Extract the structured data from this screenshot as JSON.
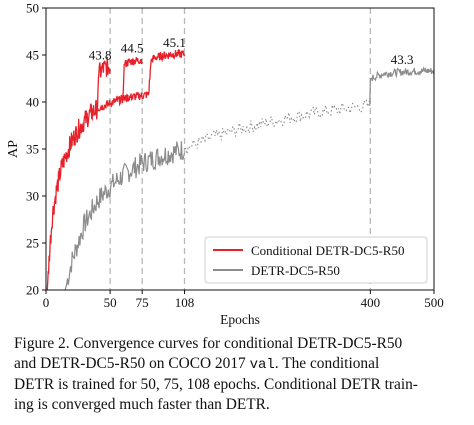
{
  "chart_data": {
    "type": "line",
    "title": "",
    "xlabel": "Epochs",
    "ylabel": "AP",
    "xlim": [
      0,
      500
    ],
    "ylim": [
      20,
      50
    ],
    "x_axis_scale": "piecewise linear (0-108 expanded, 108-500 compressed)",
    "xticks": [
      0,
      50,
      75,
      108,
      400,
      500
    ],
    "yticks": [
      20,
      25,
      30,
      35,
      40,
      45,
      50
    ],
    "vertical_dashed_lines_at": [
      50,
      75,
      108,
      400
    ],
    "grid": false,
    "legend_position": "lower-right",
    "series": [
      {
        "name": "Conditional DETR-DC5-R50",
        "color": "#e8202a",
        "style": "solid",
        "runs": [
          {
            "epochs": 50,
            "x": [
              1,
              3,
              5,
              8,
              12,
              16,
              20,
              25,
              30,
              35,
              40,
              41,
              45,
              50
            ],
            "y": [
              20,
              24.5,
              28,
              30.5,
              33,
              34.5,
              35.8,
              37,
              38,
              38.8,
              39.3,
              43.0,
              43.6,
              43.8
            ]
          },
          {
            "epochs": 75,
            "x": [
              40,
              45,
              50,
              55,
              60,
              61,
              65,
              70,
              75
            ],
            "y": [
              39.3,
              39.6,
              39.9,
              40.1,
              40.3,
              44.0,
              44.3,
              44.4,
              44.5
            ]
          },
          {
            "epochs": 108,
            "x": [
              60,
              65,
              70,
              75,
              80,
              82,
              85,
              90,
              95,
              100,
              108
            ],
            "y": [
              40.3,
              40.5,
              40.6,
              40.7,
              40.8,
              44.5,
              44.7,
              44.9,
              45.0,
              45.1,
              45.1
            ]
          }
        ],
        "annotations": [
          {
            "x": 50,
            "y": 43.8,
            "label": "43.8"
          },
          {
            "x": 75,
            "y": 44.5,
            "label": "44.5"
          },
          {
            "x": 108,
            "y": 45.1,
            "label": "45.1"
          }
        ]
      },
      {
        "name": "DETR-DC5-R50",
        "color": "#8c8c8c",
        "style": "solid (dotted between epochs 108 and 400)",
        "x": [
          15,
          20,
          30,
          40,
          50,
          60,
          75,
          90,
          108,
          150,
          200,
          250,
          300,
          350,
          399,
          400,
          420,
          450,
          480,
          500
        ],
        "y": [
          20,
          23,
          27,
          29.5,
          31,
          32.2,
          33.5,
          34.3,
          35,
          36.2,
          37.2,
          38,
          38.7,
          39.2,
          39.6,
          42.5,
          43.0,
          43.2,
          43.3,
          43.3
        ],
        "annotations": [
          {
            "x": 450,
            "y": 43.3,
            "label": "43.3"
          }
        ]
      }
    ]
  },
  "caption": {
    "line1": "Figure 2. Convergence curves for conditional DETR-DC5-R50",
    "line2_before": "and DETR-DC5-R50 on COCO 2017 ",
    "line2_code": "val",
    "line2_after": ".  The conditional",
    "line3": "DETR is trained for 50, 75, 108 epochs. Conditional DETR train-",
    "line4": "ing is converged much faster than DETR."
  }
}
